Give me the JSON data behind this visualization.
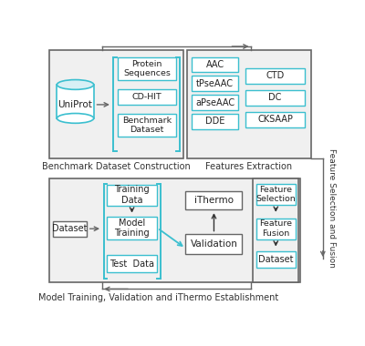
{
  "bg_color": "#ffffff",
  "outer_box_color": "#666666",
  "cyan_color": "#3bbfcf",
  "box_fill": "#ffffff",
  "gray_fill": "#f0f0f0",
  "text_color": "#222222",
  "label_color": "#333333",
  "top_left_label": "Benchmark Dataset Construction",
  "top_right_label": "Features Extraction",
  "bottom_label": "Model Training, Validation and iThermo Establishment",
  "right_label": "Feature Selection and Fusion",
  "uniprot_text": "UniProt",
  "sequences_text": "Protein\nSequences",
  "cdhit_text": "CD-HIT",
  "benchmark_text": "Benchmark\nDataset",
  "features_left": [
    "AAC",
    "tPseAAC",
    "aPseAAC",
    "DDE"
  ],
  "features_right": [
    "CTD",
    "DC",
    "CKSAAP"
  ],
  "dataset_text": "Dataset",
  "training_text": "Training\nData",
  "model_text": "Model\nTraining",
  "testdata_text": "Test  Data",
  "ithermo_text": "iThermo",
  "validation_text": "Validation",
  "feat_sel_text": "Feature\nSelection",
  "feat_fus_text": "Feature\nFusion",
  "dataset2_text": "Dataset"
}
